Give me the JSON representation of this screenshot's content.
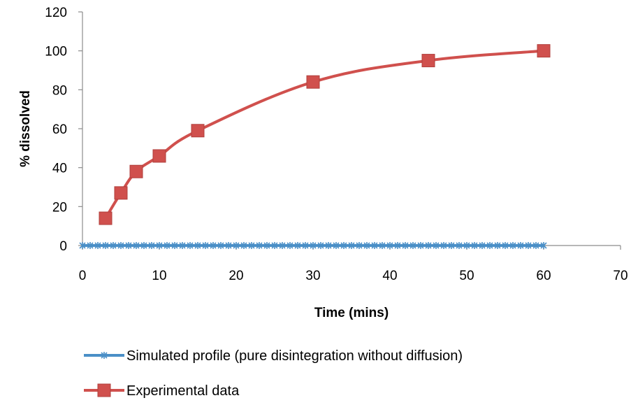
{
  "chart_data": {
    "type": "line",
    "title": "",
    "xlabel": "Time (mins)",
    "ylabel": "% dissolved",
    "xlim": [
      0,
      70
    ],
    "ylim": [
      0,
      120
    ],
    "xticks": [
      0,
      10,
      20,
      30,
      40,
      50,
      60,
      70
    ],
    "yticks": [
      0,
      20,
      40,
      60,
      80,
      100,
      120
    ],
    "grid": false,
    "legend_position": "bottom",
    "series": [
      {
        "name": "Simulated profile (pure disintegration without diffusion)",
        "color": "#4a8fc7",
        "marker": "asterisk",
        "smooth": false,
        "x": [
          0,
          1,
          2,
          3,
          4,
          5,
          6,
          7,
          8,
          9,
          10,
          11,
          12,
          13,
          14,
          15,
          16,
          17,
          18,
          19,
          20,
          21,
          22,
          23,
          24,
          25,
          26,
          27,
          28,
          29,
          30,
          31,
          32,
          33,
          34,
          35,
          36,
          37,
          38,
          39,
          40,
          41,
          42,
          43,
          44,
          45,
          46,
          47,
          48,
          49,
          50,
          51,
          52,
          53,
          54,
          55,
          56,
          57,
          58,
          59,
          60
        ],
        "y": [
          0,
          0,
          0,
          0,
          0,
          0,
          0,
          0,
          0,
          0,
          0,
          0,
          0,
          0,
          0,
          0,
          0,
          0,
          0,
          0,
          0,
          0,
          0,
          0,
          0,
          0,
          0,
          0,
          0,
          0,
          0,
          0,
          0,
          0,
          0,
          0,
          0,
          0,
          0,
          0,
          0,
          0,
          0,
          0,
          0,
          0,
          0,
          0,
          0,
          0,
          0,
          0,
          0,
          0,
          0,
          0,
          0,
          0,
          0,
          0,
          0
        ]
      },
      {
        "name": "Experimental data",
        "color": "#d0504d",
        "marker": "square",
        "smooth": true,
        "x": [
          3,
          5,
          7,
          10,
          15,
          30,
          45,
          60
        ],
        "y": [
          14,
          27,
          38,
          46,
          59,
          84,
          95,
          100
        ]
      }
    ]
  }
}
